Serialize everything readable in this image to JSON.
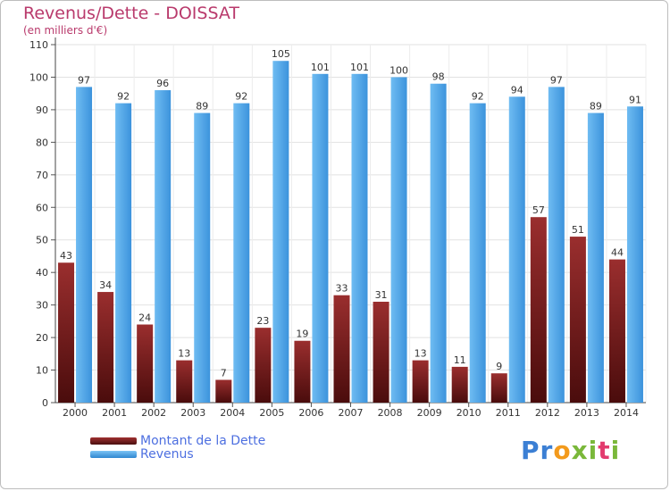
{
  "chart_data": {
    "type": "bar",
    "title": "Revenus/Dette - DOISSAT",
    "subtitle": "(en milliers d'€)",
    "categories": [
      "2000",
      "2001",
      "2002",
      "2003",
      "2004",
      "2005",
      "2006",
      "2007",
      "2008",
      "2009",
      "2010",
      "2011",
      "2012",
      "2013",
      "2014"
    ],
    "series": [
      {
        "name": "Montant de la Dette",
        "color": "#7a1f1f",
        "values": [
          43,
          34,
          24,
          13,
          7,
          23,
          19,
          33,
          31,
          13,
          11,
          9,
          57,
          51,
          44
        ]
      },
      {
        "name": "Revenus",
        "color": "#4ea5e5",
        "values": [
          97,
          92,
          96,
          89,
          92,
          105,
          101,
          101,
          100,
          98,
          92,
          94,
          97,
          89,
          91
        ]
      }
    ],
    "ylim": [
      0,
      110
    ],
    "yticks": [
      0,
      10,
      20,
      30,
      40,
      50,
      60,
      70,
      80,
      90,
      100,
      110
    ],
    "grid": true,
    "legend": "bottom-left"
  },
  "logo": {
    "text": "Proxiti",
    "colors": [
      "#3b7fd4",
      "#f39a1c",
      "#7ab83a",
      "#e23b6e"
    ]
  }
}
